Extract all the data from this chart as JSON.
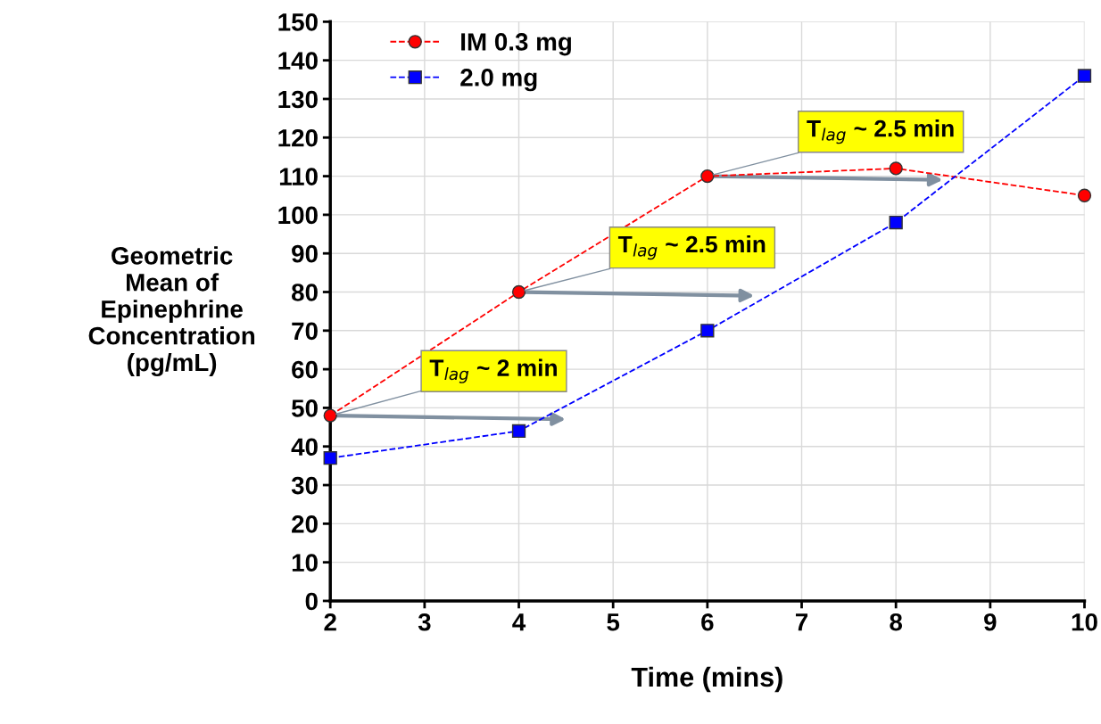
{
  "chart_data": {
    "type": "line",
    "xlabel": "Time (mins)",
    "ylabel": "Geometric\nMean of\nEpinephrine\nConcentration\n(pg/mL)",
    "x": [
      2,
      4,
      6,
      8,
      10
    ],
    "series": [
      {
        "name": "IM 0.3 mg",
        "color": "#ff0000",
        "marker": "circle",
        "values": [
          48,
          80,
          110,
          112,
          105
        ]
      },
      {
        "name": "2.0 mg",
        "color": "#0000ff",
        "marker": "square",
        "values": [
          37,
          44,
          70,
          98,
          136
        ]
      }
    ],
    "annotations": [
      {
        "text": "T$_{lag}$ ~ 2 min",
        "x": 2,
        "y": 48
      },
      {
        "text": "T$_{lag}$ ~ 2.5 min",
        "x": 4,
        "y": 80
      },
      {
        "text": "T$_{lag}$ ~ 2.5 min",
        "x": 6,
        "y": 110
      }
    ],
    "xlim": [
      2,
      10
    ],
    "ylim": [
      0,
      150
    ],
    "xticks": [
      2,
      3,
      4,
      5,
      6,
      7,
      8,
      9,
      10
    ],
    "yticks": [
      0,
      10,
      20,
      30,
      40,
      50,
      60,
      70,
      80,
      90,
      100,
      110,
      120,
      130,
      140,
      150
    ],
    "grid": true,
    "legend": "top left",
    "line_style": "dashed"
  }
}
